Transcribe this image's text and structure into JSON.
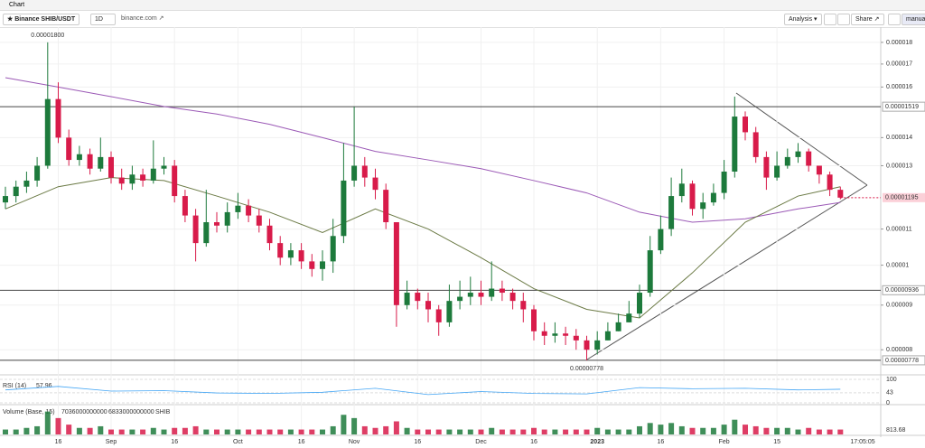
{
  "header": {
    "title": "Chart"
  },
  "toolbar": {
    "symbol": "Binance SHIB/USDT",
    "interval": "1D",
    "source": "binance.com",
    "analysis": "Analysis",
    "share": "Share",
    "mode": "manual"
  },
  "chart_data": {
    "type": "candlestick",
    "scale": "log",
    "categories": [
      null,
      null,
      null,
      null,
      null,
      "16",
      null,
      null,
      null,
      null,
      "Sep",
      null,
      null,
      null,
      null,
      null,
      "16",
      null,
      null,
      null,
      null,
      null,
      "Oct",
      null,
      null,
      null,
      null,
      null,
      "16",
      null,
      null,
      null,
      null,
      "Nov",
      null,
      null,
      null,
      null,
      null,
      "16",
      null,
      null,
      null,
      null,
      null,
      "Dec",
      null,
      null,
      null,
      null,
      "16",
      null,
      null,
      null,
      null,
      null,
      "2023",
      null,
      null,
      null,
      null,
      null,
      "16",
      null,
      null,
      null,
      null,
      null,
      "Feb",
      null,
      null,
      null,
      null,
      "15",
      null,
      null,
      null,
      null,
      null,
      null
    ],
    "open": [
      1.18e-05,
      1.2e-05,
      1.23e-05,
      1.25e-05,
      1.3e-05,
      1.55e-05,
      1.4e-05,
      1.32e-05,
      1.34e-05,
      1.29e-05,
      1.33e-05,
      1.26e-05,
      1.24e-05,
      1.27e-05,
      1.25e-05,
      1.29e-05,
      1.3e-05,
      1.2e-05,
      1.14e-05,
      1.06e-05,
      1.12e-05,
      1.11e-05,
      1.15e-05,
      1.17e-05,
      1.14e-05,
      1.11e-05,
      1.06e-05,
      1.02e-05,
      1.04e-05,
      1.01e-05,
      9.9e-06,
      1.01e-05,
      1.08e-05,
      1.25e-05,
      1.3e-05,
      1.26e-05,
      1.22e-05,
      1.12e-05,
      9e-06,
      9.3e-06,
      9.1e-06,
      8.9e-06,
      8.6e-06,
      9.1e-06,
      9.2e-06,
      9.3e-06,
      9.2e-06,
      9.4e-06,
      9.3e-06,
      9.1e-06,
      8.9e-06,
      8.4e-06,
      8.3e-06,
      8.35e-06,
      8.3e-06,
      8.2e-06,
      8e-06,
      8.2e-06,
      8.4e-06,
      8.6e-06,
      8.8e-06,
      9.3e-06,
      1.04e-05,
      1.1e-05,
      1.2e-05,
      1.24e-05,
      1.16e-05,
      1.18e-05,
      1.21e-05,
      1.28e-05,
      1.48e-05,
      1.42e-05,
      1.33e-05,
      1.26e-05,
      1.3e-05,
      1.33e-05,
      1.35e-05,
      1.3e-05,
      1.27e-05,
      1.22e-05
    ],
    "high": [
      1.23e-05,
      1.25e-05,
      1.28e-05,
      1.33e-05,
      1.8e-05,
      1.62e-05,
      1.43e-05,
      1.37e-05,
      1.36e-05,
      1.4e-05,
      1.35e-05,
      1.29e-05,
      1.3e-05,
      1.29e-05,
      1.39e-05,
      1.33e-05,
      1.32e-05,
      1.22e-05,
      1.16e-05,
      1.22e-05,
      1.15e-05,
      1.18e-05,
      1.21e-05,
      1.19e-05,
      1.16e-05,
      1.13e-05,
      1.08e-05,
      1.06e-05,
      1.06e-05,
      1.03e-05,
      1.04e-05,
      1.13e-05,
      1.38e-05,
      1.519e-05,
      1.33e-05,
      1.29e-05,
      1.24e-05,
      1.11e-05,
      9.6e-06,
      9.4e-06,
      9.3e-06,
      9e-06,
      9.5e-06,
      9.6e-06,
      9.7e-06,
      9.6e-06,
      1.01e-05,
      9.6e-06,
      9.4e-06,
      9.3e-06,
      9e-06,
      8.6e-06,
      8.6e-06,
      8.5e-06,
      8.45e-06,
      8.3e-06,
      8.4e-06,
      8.6e-06,
      8.8e-06,
      9.1e-06,
      9.5e-06,
      1.08e-05,
      1.14e-05,
      1.26e-05,
      1.29e-05,
      1.25e-05,
      1.21e-05,
      1.24e-05,
      1.32e-05,
      1.56e-05,
      1.5e-05,
      1.44e-05,
      1.35e-05,
      1.35e-05,
      1.36e-05,
      1.38e-05,
      1.36e-05,
      1.3e-05,
      1.28e-05,
      1.23e-05
    ],
    "low": [
      1.16e-05,
      1.18e-05,
      1.21e-05,
      1.23e-05,
      1.29e-05,
      1.38e-05,
      1.3e-05,
      1.3e-05,
      1.27e-05,
      1.28e-05,
      1.24e-05,
      1.22e-05,
      1.22e-05,
      1.23e-05,
      1.24e-05,
      1.27e-05,
      1.18e-05,
      1.12e-05,
      1.01e-05,
      1.05e-05,
      1.09e-05,
      1.09e-05,
      1.13e-05,
      1.12e-05,
      1.09e-05,
      1.04e-05,
      1e-05,
      1e-05,
      9.9e-06,
      9.7e-06,
      9.6e-06,
      9.8e-06,
      1.06e-05,
      1.23e-05,
      1.23e-05,
      1.19e-05,
      1.1e-05,
      8.5e-06,
      8.9e-06,
      8.9e-06,
      8.6e-06,
      8.3e-06,
      8.5e-06,
      8.9e-06,
      9e-06,
      9e-06,
      9.1e-06,
      9.1e-06,
      8.9e-06,
      8.6e-06,
      8.2e-06,
      8.1e-06,
      8.15e-06,
      8.1e-06,
      8e-06,
      7.78e-06,
      7.9e-06,
      8.2e-06,
      8.4e-06,
      8.6e-06,
      8.7e-06,
      9.2e-06,
      1.03e-05,
      1.08e-05,
      1.18e-05,
      1.14e-05,
      1.13e-05,
      1.17e-05,
      1.19e-05,
      1.26e-05,
      1.39e-05,
      1.31e-05,
      1.22e-05,
      1.25e-05,
      1.29e-05,
      1.31e-05,
      1.28e-05,
      1.24e-05,
      1.2e-05,
      1.19e-05
    ],
    "close": [
      1.2e-05,
      1.23e-05,
      1.25e-05,
      1.3e-05,
      1.55e-05,
      1.4e-05,
      1.32e-05,
      1.34e-05,
      1.29e-05,
      1.33e-05,
      1.26e-05,
      1.24e-05,
      1.27e-05,
      1.25e-05,
      1.29e-05,
      1.3e-05,
      1.2e-05,
      1.14e-05,
      1.06e-05,
      1.12e-05,
      1.11e-05,
      1.15e-05,
      1.17e-05,
      1.14e-05,
      1.11e-05,
      1.06e-05,
      1.02e-05,
      1.04e-05,
      1.01e-05,
      9.9e-06,
      1.01e-05,
      1.08e-05,
      1.25e-05,
      1.3e-05,
      1.26e-05,
      1.22e-05,
      1.12e-05,
      9e-06,
      9.3e-06,
      9.1e-06,
      8.9e-06,
      8.6e-06,
      9.1e-06,
      9.2e-06,
      9.3e-06,
      9.2e-06,
      9.4e-06,
      9.3e-06,
      9.1e-06,
      8.9e-06,
      8.4e-06,
      8.3e-06,
      8.35e-06,
      8.3e-06,
      8.2e-06,
      8e-06,
      8.2e-06,
      8.4e-06,
      8.6e-06,
      8.8e-06,
      9.3e-06,
      1.04e-05,
      1.1e-05,
      1.2e-05,
      1.24e-05,
      1.16e-05,
      1.18e-05,
      1.21e-05,
      1.28e-05,
      1.48e-05,
      1.42e-05,
      1.33e-05,
      1.26e-05,
      1.3e-05,
      1.33e-05,
      1.35e-05,
      1.3e-05,
      1.27e-05,
      1.22e-05,
      1.195e-05
    ],
    "up_color": "#1d7a3c",
    "down_color": "#d81b4a",
    "ylim": [
      7.76e-06,
      1.874e-05
    ],
    "yticks": [
      1.8e-05,
      1.7e-05,
      1.6e-05,
      1.4e-05,
      1.3e-05,
      1.1e-05,
      1e-05,
      9e-06,
      8e-06
    ],
    "price_lines": [
      {
        "value": 1.519e-05,
        "label": "0.00001519"
      },
      {
        "value": 9.36e-06,
        "label": "0.00000936"
      },
      {
        "value": 7.78e-06,
        "label": "0.00000778"
      }
    ],
    "current_price": {
      "value": 1.195e-05,
      "label": "0.00001195"
    },
    "annotations": [
      {
        "value": 1.8e-05,
        "label": "0.00001800"
      },
      {
        "value": 7.78e-06,
        "label": "0.00000778"
      }
    ],
    "series": [
      {
        "color": "#9b59b6",
        "x": [
          0,
          5,
          10,
          15,
          20,
          25,
          30,
          35,
          40,
          45,
          50,
          55,
          60,
          65,
          70,
          75,
          79
        ],
        "values": [
          1.64e-05,
          1.6e-05,
          1.56e-05,
          1.52e-05,
          1.49e-05,
          1.45e-05,
          1.4e-05,
          1.35e-05,
          1.32e-05,
          1.29e-05,
          1.25e-05,
          1.21e-05,
          1.15e-05,
          1.12e-05,
          1.13e-05,
          1.16e-05,
          1.18e-05
        ]
      },
      {
        "color": "#6b7a45",
        "x": [
          0,
          5,
          10,
          15,
          20,
          25,
          30,
          35,
          40,
          45,
          50,
          55,
          60,
          65,
          70,
          75,
          79
        ],
        "values": [
          1.16e-05,
          1.23e-05,
          1.26e-05,
          1.25e-05,
          1.2e-05,
          1.15e-05,
          1.09e-05,
          1.16e-05,
          1.1e-05,
          1.02e-05,
          9.4e-06,
          8.9e-06,
          8.7e-06,
          9.8e-06,
          1.12e-05,
          1.2e-05,
          1.23e-05
        ]
      }
    ],
    "time_label": "17:05:05",
    "rsi": {
      "title": "RSI (14)",
      "color": "#42a5f5",
      "x": [
        0,
        5,
        10,
        15,
        20,
        25,
        30,
        35,
        40,
        45,
        50,
        55,
        60,
        65,
        70,
        75,
        79
      ],
      "values": [
        55,
        70,
        50,
        52,
        42,
        40,
        45,
        62,
        35,
        48,
        40,
        38,
        65,
        60,
        62,
        55,
        57.96
      ],
      "ylim": [
        0,
        100
      ],
      "yticks": [
        100,
        43,
        0
      ]
    },
    "volume": {
      "title": "Volume (Base, 15)",
      "readouts": [
        7036000000000,
        6833000000000
      ],
      "unit": "SHIB",
      "scale_label": "813.68",
      "ylim": [
        0,
        16000000000000.0
      ],
      "values": [
        3000000000000.0,
        3000000000000.0,
        4000000000000.0,
        5000000000000.0,
        14000000000000.0,
        10000000000000.0,
        6000000000000.0,
        4000000000000.0,
        4000000000000.0,
        5000000000000.0,
        3000000000000.0,
        3000000000000.0,
        3000000000000.0,
        3000000000000.0,
        4000000000000.0,
        3000000000000.0,
        4000000000000.0,
        4000000000000.0,
        5000000000000.0,
        3000000000000.0,
        3000000000000.0,
        3000000000000.0,
        3000000000000.0,
        3000000000000.0,
        3000000000000.0,
        3000000000000.0,
        3000000000000.0,
        3000000000000.0,
        3000000000000.0,
        3000000000000.0,
        3000000000000.0,
        5000000000000.0,
        12000000000000.0,
        10000000000000.0,
        5000000000000.0,
        4000000000000.0,
        5000000000000.0,
        8000000000000.0,
        4000000000000.0,
        3000000000000.0,
        3000000000000.0,
        3000000000000.0,
        3000000000000.0,
        3000000000000.0,
        3000000000000.0,
        3000000000000.0,
        4000000000000.0,
        3000000000000.0,
        3000000000000.0,
        3000000000000.0,
        4000000000000.0,
        3000000000000.0,
        3000000000000.0,
        3000000000000.0,
        3000000000000.0,
        3000000000000.0,
        4000000000000.0,
        3000000000000.0,
        3000000000000.0,
        3000000000000.0,
        5000000000000.0,
        7000000000000.0,
        6000000000000.0,
        7000000000000.0,
        5000000000000.0,
        4000000000000.0,
        4000000000000.0,
        4000000000000.0,
        6000000000000.0,
        9000000000000.0,
        6000000000000.0,
        5000000000000.0,
        4000000000000.0,
        4000000000000.0,
        4000000000000.0,
        3000000000000.0,
        4000000000000.0,
        3000000000000.0,
        3000000000000.0,
        3000000000000.0
      ]
    }
  }
}
